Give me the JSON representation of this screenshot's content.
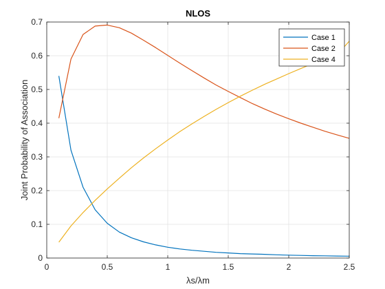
{
  "chart_data": {
    "type": "line",
    "title": "NLOS",
    "xlabel": "λs/λm",
    "ylabel": "Joint Probability of Association",
    "xlim": [
      0,
      2.5
    ],
    "ylim": [
      0,
      0.7
    ],
    "xticks": [
      0,
      0.5,
      1,
      1.5,
      2,
      2.5
    ],
    "xtick_labels": [
      "0",
      "0.5",
      "1",
      "1.5",
      "2",
      "2.5"
    ],
    "yticks": [
      0,
      0.1,
      0.2,
      0.3,
      0.4,
      0.5,
      0.6,
      0.7
    ],
    "ytick_labels": [
      "0",
      "0.1",
      "0.2",
      "0.3",
      "0.4",
      "0.5",
      "0.6",
      "0.7"
    ],
    "grid": true,
    "legend_position": "top-right",
    "series": [
      {
        "name": "Case 1",
        "color": "#0072BD",
        "x": [
          0.1,
          0.2,
          0.3,
          0.4,
          0.5,
          0.6,
          0.7,
          0.8,
          0.9,
          1.0,
          1.1,
          1.2,
          1.3,
          1.4,
          1.5,
          1.6,
          1.7,
          1.8,
          1.9,
          2.0,
          2.1,
          2.2,
          2.3,
          2.4,
          2.5
        ],
        "values": [
          0.54,
          0.32,
          0.21,
          0.143,
          0.103,
          0.077,
          0.06,
          0.048,
          0.039,
          0.032,
          0.027,
          0.023,
          0.02,
          0.017,
          0.015,
          0.013,
          0.012,
          0.011,
          0.0095,
          0.0085,
          0.0078,
          0.007,
          0.0065,
          0.006,
          0.0055
        ]
      },
      {
        "name": "Case 2",
        "color": "#D95319",
        "x": [
          0.1,
          0.2,
          0.3,
          0.4,
          0.5,
          0.6,
          0.7,
          0.8,
          0.9,
          1.0,
          1.1,
          1.2,
          1.3,
          1.4,
          1.5,
          1.6,
          1.7,
          1.8,
          1.9,
          2.0,
          2.1,
          2.2,
          2.3,
          2.4,
          2.5
        ],
        "values": [
          0.415,
          0.59,
          0.663,
          0.688,
          0.691,
          0.683,
          0.667,
          0.646,
          0.624,
          0.601,
          0.578,
          0.556,
          0.534,
          0.513,
          0.494,
          0.476,
          0.458,
          0.442,
          0.427,
          0.413,
          0.4,
          0.388,
          0.376,
          0.365,
          0.355
        ]
      },
      {
        "name": "Case 4",
        "color": "#EDB120",
        "x": [
          0.1,
          0.2,
          0.3,
          0.4,
          0.5,
          0.6,
          0.7,
          0.8,
          0.9,
          1.0,
          1.1,
          1.2,
          1.3,
          1.4,
          1.5,
          1.6,
          1.7,
          1.8,
          1.9,
          2.0,
          2.1,
          2.2,
          2.3,
          2.4,
          2.5
        ],
        "values": [
          0.047,
          0.095,
          0.135,
          0.171,
          0.205,
          0.237,
          0.268,
          0.297,
          0.324,
          0.35,
          0.375,
          0.398,
          0.42,
          0.441,
          0.461,
          0.48,
          0.498,
          0.515,
          0.531,
          0.547,
          0.562,
          0.577,
          0.59,
          0.603,
          0.643
        ]
      }
    ]
  }
}
